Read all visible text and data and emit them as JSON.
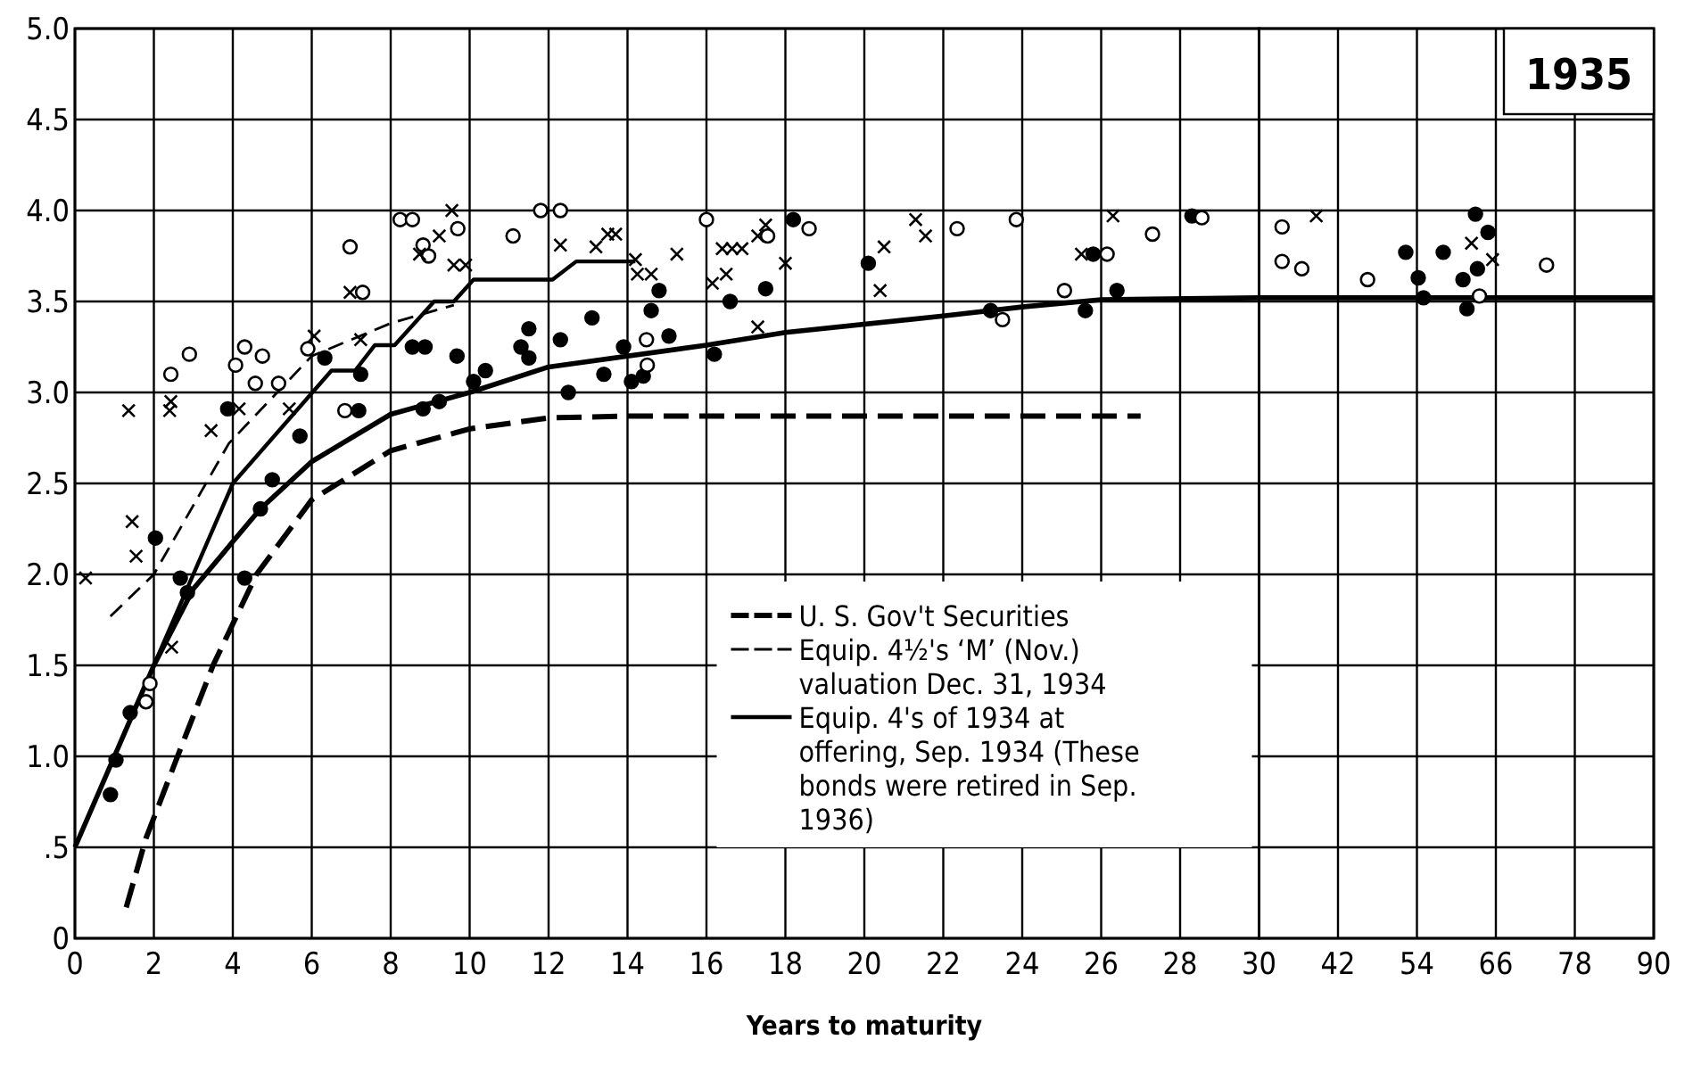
{
  "chart_data": [
    {
      "type": "scatter",
      "xlabel": "Years to maturity",
      "xlim": [
        0,
        30
      ],
      "xticks": [
        0,
        2,
        4,
        6,
        8,
        10,
        12,
        14,
        16,
        18,
        20,
        22,
        24,
        26,
        28,
        30
      ],
      "ylim": [
        0,
        5
      ],
      "yticks": [
        0,
        {
          "value": 0.5,
          "label": ".5"
        },
        {
          "value": 1,
          "label": "1.0"
        },
        {
          "value": 1.5,
          "label": "1.5"
        },
        {
          "value": 2,
          "label": "2.0"
        },
        {
          "value": 2.5,
          "label": "2.5"
        },
        {
          "value": 3,
          "label": "3.0"
        },
        {
          "value": 3.5,
          "label": "3.5"
        },
        {
          "value": 4,
          "label": "4.0"
        },
        {
          "value": 4.5,
          "label": "4.5"
        },
        {
          "value": 5,
          "label": "5.0"
        }
      ],
      "grid": true,
      "legend": "bottom right",
      "series": [
        {
          "type": "line",
          "name": "U. S. Gov't Securities",
          "color": "#000000",
          "line_style": "dashed",
          "x": [
            1.3,
            1.8,
            2.6,
            3.5,
            4.6,
            6,
            8,
            10,
            12,
            14,
            27
          ],
          "values": [
            0.17,
            0.55,
            1.0,
            1.5,
            2.0,
            2.41,
            2.68,
            2.8,
            2.86,
            2.87,
            2.87
          ]
        },
        {
          "type": "line",
          "name": "Equip. 4½'s ‘M’ (Nov.) valuation Dec. 31, 1934",
          "color": "#000000",
          "line_style": "dotted",
          "x": [
            0.9,
            2,
            3.9,
            6,
            8,
            9.6
          ],
          "values": [
            1.77,
            2.0,
            2.72,
            3.2,
            3.38,
            3.48
          ]
        },
        {
          "type": "line",
          "name": "Equip. 4's of 1934 at offering, Sep. 1934 (These bonds were retired in Sep. 1936)",
          "color": "#000000",
          "line_style": "solid",
          "x": [
            2,
            4,
            6.5,
            7.1,
            7.6,
            8.1,
            9.1,
            9.6,
            10.1,
            12.1,
            12.7,
            14.2
          ],
          "values": [
            1.5,
            2.5,
            3.12,
            3.12,
            3.26,
            3.26,
            3.5,
            3.5,
            3.62,
            3.62,
            3.72,
            3.72
          ]
        },
        {
          "type": "line",
          "color": "#000000",
          "line_style": "solid",
          "x": [
            0,
            1,
            2,
            3,
            4,
            4.7,
            6,
            8,
            10,
            12,
            16,
            18,
            22,
            24,
            26,
            30
          ],
          "values": [
            0.5,
            1.0,
            1.5,
            1.92,
            2.18,
            2.36,
            2.62,
            2.88,
            3.0,
            3.14,
            3.26,
            3.33,
            3.42,
            3.47,
            3.51,
            3.52
          ]
        },
        {
          "marker": "circle",
          "color": "#000000",
          "x": [
            0.9,
            1.04,
            1.4,
            2.04,
            2.67,
            2.85,
            3.87,
            4.3,
            4.7,
            5.0,
            5.7,
            6.33,
            7.19,
            7.24,
            8.55,
            8.87,
            8.82,
            9.23,
            9.68,
            10.1,
            10.4,
            11.3,
            11.5,
            11.5,
            12.3,
            12.5,
            13.1,
            13.4,
            13.9,
            14.1,
            14.4,
            14.6,
            14.8,
            15.05,
            16.2,
            16.6,
            17.5,
            18.2,
            20.1,
            23.2,
            25.6,
            25.8,
            26.4,
            28.3
          ],
          "values": [
            0.79,
            0.98,
            1.24,
            2.2,
            1.98,
            1.9,
            2.91,
            1.98,
            2.36,
            2.52,
            2.76,
            3.19,
            2.9,
            3.1,
            3.25,
            3.25,
            2.91,
            2.95,
            3.2,
            3.06,
            3.12,
            3.25,
            3.35,
            3.19,
            3.29,
            3.0,
            3.41,
            3.1,
            3.25,
            3.06,
            3.09,
            3.45,
            3.56,
            3.31,
            3.21,
            3.5,
            3.57,
            3.95,
            3.71,
            3.45,
            3.45,
            3.76,
            3.56,
            3.97
          ]
        },
        {
          "marker": "circle",
          "color": "#ffffff",
          "x": [
            1.8,
            1.9,
            2.43,
            2.9,
            4.07,
            4.3,
            4.57,
            4.75,
            5.16,
            5.9,
            6.84,
            6.97,
            7.29,
            8.24,
            8.55,
            8.82,
            8.96,
            9.7,
            11.1,
            11.8,
            12.3,
            14.48,
            14.5,
            16.0,
            17.55,
            18.6,
            22.35,
            23.5,
            23.85,
            25.07,
            26.15,
            27.3,
            28.55
          ],
          "values": [
            1.3,
            1.4,
            3.1,
            3.21,
            3.15,
            3.25,
            3.05,
            3.2,
            3.05,
            3.24,
            2.9,
            3.8,
            3.55,
            3.95,
            3.95,
            3.81,
            3.75,
            3.9,
            3.86,
            4.0,
            4.0,
            3.29,
            3.15,
            3.95,
            3.86,
            3.9,
            3.9,
            3.4,
            3.95,
            3.56,
            3.76,
            3.87,
            3.96
          ]
        },
        {
          "marker": "cross",
          "color": "#000000",
          "x": [
            0.27,
            1.36,
            1.45,
            1.55,
            2.4,
            2.43,
            2.45,
            3.45,
            4.16,
            5.43,
            6.06,
            6.97,
            7.24,
            8.73,
            9.23,
            9.55,
            9.6,
            9.9,
            12.3,
            13.2,
            13.5,
            13.7,
            14.2,
            14.25,
            14.6,
            15.25,
            16.15,
            16.4,
            16.5,
            16.65,
            16.9,
            17.3,
            17.3,
            17.5,
            18.0,
            20.4,
            20.5,
            21.3,
            21.55,
            25.5,
            26.3
          ],
          "values": [
            1.98,
            2.9,
            2.29,
            2.1,
            2.9,
            2.95,
            1.6,
            2.79,
            2.91,
            2.91,
            3.31,
            3.55,
            3.29,
            3.76,
            3.86,
            4.0,
            3.7,
            3.7,
            3.81,
            3.8,
            3.87,
            3.87,
            3.73,
            3.65,
            3.65,
            3.76,
            3.6,
            3.79,
            3.65,
            3.79,
            3.79,
            3.86,
            3.36,
            3.92,
            3.71,
            3.56,
            3.8,
            3.95,
            3.86,
            3.76,
            3.97
          ]
        }
      ]
    },
    {
      "type": "scatter",
      "annotations": [
        "1935"
      ],
      "xlim": [
        30,
        90
      ],
      "xticks": [
        {
          "value": 30,
          "label": null
        },
        42,
        54,
        66,
        78,
        90
      ],
      "ylim": [
        0,
        5
      ],
      "yticks": [
        0,
        0.5,
        1,
        1.5,
        2,
        2.5,
        3,
        3.5,
        4,
        4.5,
        5
      ],
      "tick_labels": "x",
      "grid": true,
      "series": [
        {
          "type": "line",
          "color": "#000000",
          "line_style": "solid",
          "x": [
            30,
            90
          ],
          "values": [
            3.52,
            3.52
          ]
        },
        {
          "marker": "circle",
          "color": "#000000",
          "x": [
            52.3,
            54.2,
            55.0,
            58.0,
            61.0,
            61.6,
            62.9,
            63.2,
            64.8
          ],
          "values": [
            3.77,
            3.63,
            3.52,
            3.77,
            3.62,
            3.46,
            3.98,
            3.68,
            3.88
          ]
        },
        {
          "marker": "circle",
          "color": "#ffffff",
          "x": [
            33.5,
            33.5,
            36.5,
            46.5,
            63.5,
            73.7
          ],
          "values": [
            3.91,
            3.72,
            3.68,
            3.62,
            3.53,
            3.7
          ]
        },
        {
          "marker": "cross",
          "color": "#000000",
          "x": [
            38.7,
            62.3,
            65.5
          ],
          "values": [
            3.97,
            3.82,
            3.73
          ]
        }
      ]
    }
  ]
}
